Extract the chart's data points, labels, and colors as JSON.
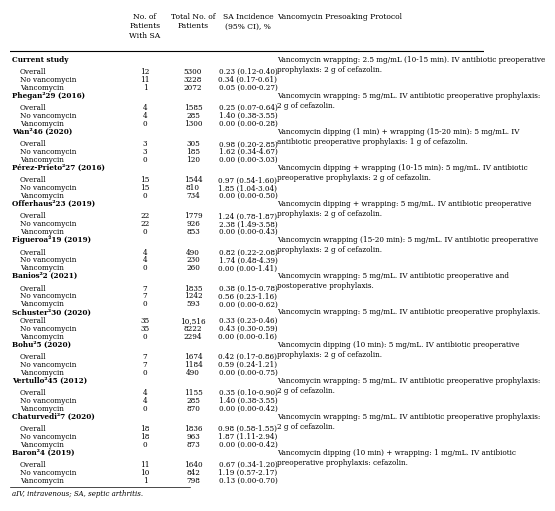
{
  "footnote": "aIV, intravenous; SA, septic arthritis.",
  "col_headers": [
    "No. of\nPatients\nWith SA",
    "Total No. of\nPatients",
    "SA Incidence\n(95% CI), %",
    "Vancomycin Presoaking Protocol"
  ],
  "rows": [
    {
      "label": "Current study",
      "indent": 0,
      "bold": true,
      "sa": "",
      "total": "",
      "incidence": "",
      "protocol": "Vancomycin wrapping: 2.5 mg/mL (10-15 min). IV antibiotic preoperative\nprophylaxis: 2 g of cefazolin."
    },
    {
      "label": "Overall",
      "indent": 1,
      "bold": false,
      "sa": "12",
      "total": "5300",
      "incidence": "0.23 (0.12-0.40)",
      "protocol": ""
    },
    {
      "label": "No vancomycin",
      "indent": 1,
      "bold": false,
      "sa": "11",
      "total": "3228",
      "incidence": "0.34 (0.17-0.61)",
      "protocol": ""
    },
    {
      "label": "Vancomycin",
      "indent": 1,
      "bold": false,
      "sa": "1",
      "total": "2072",
      "incidence": "0.05 (0.00-0.27)",
      "protocol": ""
    },
    {
      "label": "Phegan²29 (2016)",
      "indent": 0,
      "bold": true,
      "sa": "",
      "total": "",
      "incidence": "",
      "protocol": "Vancomycin wrapping: 5 mg/mL. IV antibiotic preoperative prophylaxis:\n2 g of cefazolin."
    },
    {
      "label": "Overall",
      "indent": 1,
      "bold": false,
      "sa": "4",
      "total": "1585",
      "incidence": "0.25 (0.07-0.64)",
      "protocol": ""
    },
    {
      "label": "No vancomycin",
      "indent": 1,
      "bold": false,
      "sa": "4",
      "total": "285",
      "incidence": "1.40 (0.38-3.55)",
      "protocol": ""
    },
    {
      "label": "Vancomycin",
      "indent": 1,
      "bold": false,
      "sa": "0",
      "total": "1300",
      "incidence": "0.00 (0.00-0.28)",
      "protocol": ""
    },
    {
      "label": "Wan²46 (2020)",
      "indent": 0,
      "bold": true,
      "sa": "",
      "total": "",
      "incidence": "",
      "protocol": "Vancomycin dipping (1 min) + wrapping (15-20 min): 5 mg/mL. IV\nantibiotic preoperative prophylaxis: 1 g of cefazolin."
    },
    {
      "label": "Overall",
      "indent": 1,
      "bold": false,
      "sa": "3",
      "total": "305",
      "incidence": "0.98 (0.20-2.85)",
      "protocol": ""
    },
    {
      "label": "No vancomycin",
      "indent": 1,
      "bold": false,
      "sa": "3",
      "total": "185",
      "incidence": "1.62 (0.34-4.67)",
      "protocol": ""
    },
    {
      "label": "Vancomycin",
      "indent": 1,
      "bold": false,
      "sa": "0",
      "total": "120",
      "incidence": "0.00 (0.00-3.03)",
      "protocol": ""
    },
    {
      "label": "Pérez-Prieto²27 (2016)",
      "indent": 0,
      "bold": true,
      "sa": "",
      "total": "",
      "incidence": "",
      "protocol": "Vancomycin dipping + wrapping (10-15 min): 5 mg/mL. IV antibiotic\npreoperative prophylaxis: 2 g of cefazolin."
    },
    {
      "label": "Overall",
      "indent": 1,
      "bold": false,
      "sa": "15",
      "total": "1544",
      "incidence": "0.97 (0.54-1.60)",
      "protocol": ""
    },
    {
      "label": "No vancomycin",
      "indent": 1,
      "bold": false,
      "sa": "15",
      "total": "810",
      "incidence": "1.85 (1.04-3.04)",
      "protocol": ""
    },
    {
      "label": "Vancomycin",
      "indent": 1,
      "bold": false,
      "sa": "0",
      "total": "734",
      "incidence": "0.00 (0.00-0.50)",
      "protocol": ""
    },
    {
      "label": "Offerhaus²23 (2019)",
      "indent": 0,
      "bold": true,
      "sa": "",
      "total": "",
      "incidence": "",
      "protocol": "Vancomycin dipping + wrapping: 5 mg/mL. IV antibiotic preoperative\nprophylaxis: 2 g of cefazolin."
    },
    {
      "label": "Overall",
      "indent": 1,
      "bold": false,
      "sa": "22",
      "total": "1779",
      "incidence": "1.24 (0.78-1.87)",
      "protocol": ""
    },
    {
      "label": "No vancomycin",
      "indent": 1,
      "bold": false,
      "sa": "22",
      "total": "926",
      "incidence": "2.38 (1.49-3.58)",
      "protocol": ""
    },
    {
      "label": "Vancomycin",
      "indent": 1,
      "bold": false,
      "sa": "0",
      "total": "853",
      "incidence": "0.00 (0.00-0.43)",
      "protocol": ""
    },
    {
      "label": "Figueroa²19 (2019)",
      "indent": 0,
      "bold": true,
      "sa": "",
      "total": "",
      "incidence": "",
      "protocol": "Vancomycin wrapping (15-20 min): 5 mg/mL. IV antibiotic preoperative\nprophylaxis: 2 g of cefazolin."
    },
    {
      "label": "Overall",
      "indent": 1,
      "bold": false,
      "sa": "4",
      "total": "490",
      "incidence": "0.82 (0.22-2.08)",
      "protocol": ""
    },
    {
      "label": "No vancomycin",
      "indent": 1,
      "bold": false,
      "sa": "4",
      "total": "230",
      "incidence": "1.74 (0.48-4.39)",
      "protocol": ""
    },
    {
      "label": "Vancomycin",
      "indent": 1,
      "bold": false,
      "sa": "0",
      "total": "260",
      "incidence": "0.00 (0.00-1.41)",
      "protocol": ""
    },
    {
      "label": "Banios²2 (2021)",
      "indent": 0,
      "bold": true,
      "sa": "",
      "total": "",
      "incidence": "",
      "protocol": "Vancomycin wrapping: 5 mg/mL. IV antibiotic preoperative and\npostoperative prophylaxis."
    },
    {
      "label": "Overall",
      "indent": 1,
      "bold": false,
      "sa": "7",
      "total": "1835",
      "incidence": "0.38 (0.15-0.78)",
      "protocol": ""
    },
    {
      "label": "No vancomycin",
      "indent": 1,
      "bold": false,
      "sa": "7",
      "total": "1242",
      "incidence": "0.56 (0.23-1.16)",
      "protocol": ""
    },
    {
      "label": "Vancomycin",
      "indent": 1,
      "bold": false,
      "sa": "0",
      "total": "593",
      "incidence": "0.00 (0.00-0.62)",
      "protocol": ""
    },
    {
      "label": "Schuster²30 (2020)",
      "indent": 0,
      "bold": true,
      "sa": "",
      "total": "",
      "incidence": "",
      "protocol": "Vancomycin wrapping: 5 mg/mL. IV antibiotic preoperative prophylaxis."
    },
    {
      "label": "Overall",
      "indent": 1,
      "bold": false,
      "sa": "35",
      "total": "10,516",
      "incidence": "0.33 (0.23-0.46)",
      "protocol": ""
    },
    {
      "label": "No vancomycin",
      "indent": 1,
      "bold": false,
      "sa": "35",
      "total": "8222",
      "incidence": "0.43 (0.30-0.59)",
      "protocol": ""
    },
    {
      "label": "Vancomycin",
      "indent": 1,
      "bold": false,
      "sa": "0",
      "total": "2294",
      "incidence": "0.00 (0.00-0.16)",
      "protocol": ""
    },
    {
      "label": "Bohu²5 (2020)",
      "indent": 0,
      "bold": true,
      "sa": "",
      "total": "",
      "incidence": "",
      "protocol": "Vancomycin dipping (10 min): 5 mg/mL. IV antibiotic preoperative\nprophylaxis: 2 g of cefazolin."
    },
    {
      "label": "Overall",
      "indent": 1,
      "bold": false,
      "sa": "7",
      "total": "1674",
      "incidence": "0.42 (0.17-0.86)",
      "protocol": ""
    },
    {
      "label": "No vancomycin",
      "indent": 1,
      "bold": false,
      "sa": "7",
      "total": "1184",
      "incidence": "0.59 (0.24-1.21)",
      "protocol": ""
    },
    {
      "label": "Vancomycin",
      "indent": 1,
      "bold": false,
      "sa": "0",
      "total": "490",
      "incidence": "0.00 (0.00-0.75)",
      "protocol": ""
    },
    {
      "label": "Vertullo²45 (2012)",
      "indent": 0,
      "bold": true,
      "sa": "",
      "total": "",
      "incidence": "",
      "protocol": "Vancomycin wrapping: 5 mg/mL. IV antibiotic preoperative prophylaxis:\n2 g of cefazolin."
    },
    {
      "label": "Overall",
      "indent": 1,
      "bold": false,
      "sa": "4",
      "total": "1155",
      "incidence": "0.35 (0.10-0.90)",
      "protocol": ""
    },
    {
      "label": "No vancomycin",
      "indent": 1,
      "bold": false,
      "sa": "4",
      "total": "285",
      "incidence": "1.40 (0.38-3.55)",
      "protocol": ""
    },
    {
      "label": "Vancomycin",
      "indent": 1,
      "bold": false,
      "sa": "0",
      "total": "870",
      "incidence": "0.00 (0.00-0.42)",
      "protocol": ""
    },
    {
      "label": "Chaturvedi²7 (2020)",
      "indent": 0,
      "bold": true,
      "sa": "",
      "total": "",
      "incidence": "",
      "protocol": "Vancomycin wrapping: 5 mg/mL. IV antibiotic preoperative prophylaxis:\n2 g of cefazolin."
    },
    {
      "label": "Overall",
      "indent": 1,
      "bold": false,
      "sa": "18",
      "total": "1836",
      "incidence": "0.98 (0.58-1.55)",
      "protocol": ""
    },
    {
      "label": "No vancomycin",
      "indent": 1,
      "bold": false,
      "sa": "18",
      "total": "963",
      "incidence": "1.87 (1.11-2.94)",
      "protocol": ""
    },
    {
      "label": "Vancomycin",
      "indent": 1,
      "bold": false,
      "sa": "0",
      "total": "873",
      "incidence": "0.00 (0.00-0.42)",
      "protocol": ""
    },
    {
      "label": "Baron²4 (2019)",
      "indent": 0,
      "bold": true,
      "sa": "",
      "total": "",
      "incidence": "",
      "protocol": "Vancomycin dipping (10 min) + wrapping: 1 mg/mL. IV antibiotic\npreoperative prophylaxis: cefazolin."
    },
    {
      "label": "Overall",
      "indent": 1,
      "bold": false,
      "sa": "11",
      "total": "1640",
      "incidence": "0.67 (0.34-1.20)",
      "protocol": ""
    },
    {
      "label": "No vancomycin",
      "indent": 1,
      "bold": false,
      "sa": "10",
      "total": "842",
      "incidence": "1.19 (0.57-2.17)",
      "protocol": ""
    },
    {
      "label": "Vancomycin",
      "indent": 1,
      "bold": false,
      "sa": "1",
      "total": "798",
      "incidence": "0.13 (0.00-0.70)",
      "protocol": ""
    }
  ]
}
